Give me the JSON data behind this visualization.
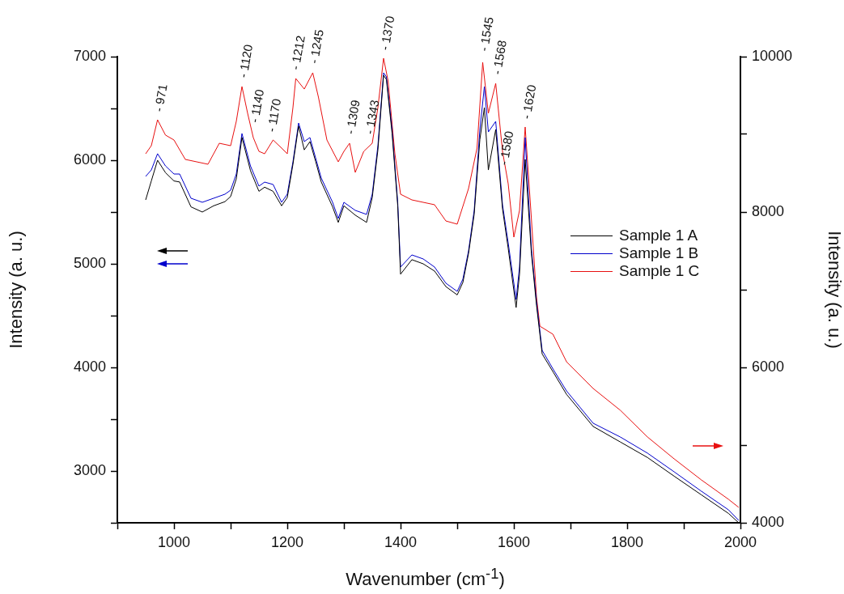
{
  "chart_data": {
    "type": "line",
    "xlabel": "Wavenumber (cm$^{-1}$)",
    "ylabel": "Intensity (a. u.)",
    "y2label": "Intensity (a. u.)",
    "xlim": [
      900,
      2000
    ],
    "xticks": [
      {
        "value": 900,
        "label": null
      },
      1000,
      {
        "value": 1100,
        "label": null
      },
      1200,
      {
        "value": 1300,
        "label": null
      },
      1400,
      {
        "value": 1500,
        "label": null
      },
      1600,
      {
        "value": 1700,
        "label": null
      },
      1800,
      {
        "value": 1900,
        "label": null
      },
      2000
    ],
    "ylim": [
      2500,
      7000
    ],
    "yticks": [
      {
        "value": 2500,
        "label": null
      },
      3000,
      {
        "value": 3500,
        "label": null
      },
      4000,
      {
        "value": 4500,
        "label": null
      },
      5000,
      {
        "value": 5500,
        "label": null
      },
      6000,
      {
        "value": 6500,
        "label": null
      },
      7000
    ],
    "y2lim": [
      4000,
      10000
    ],
    "y2ticks": [
      4000,
      {
        "value": 5000,
        "label": null
      },
      6000,
      {
        "value": 7000,
        "label": null
      },
      8000,
      {
        "value": 9000,
        "label": null
      },
      10000
    ],
    "legend": "right",
    "marker": "none",
    "line_style": "solid",
    "series": [
      {
        "name": "Sample 1 A",
        "color": "#000000",
        "x": [
          950,
          960,
          971,
          985,
          1000,
          1010,
          1030,
          1050,
          1070,
          1090,
          1100,
          1110,
          1120,
          1135,
          1150,
          1160,
          1175,
          1190,
          1200,
          1210,
          1220,
          1230,
          1240,
          1250,
          1260,
          1280,
          1290,
          1300,
          1320,
          1340,
          1350,
          1360,
          1370,
          1375,
          1385,
          1395,
          1400,
          1420,
          1440,
          1460,
          1480,
          1500,
          1510,
          1520,
          1530,
          1540,
          1548,
          1555,
          1568,
          1580,
          1590,
          1604,
          1610,
          1620,
          1631,
          1640,
          1650,
          1670,
          1693,
          1740,
          1788,
          1836,
          1883,
          1931,
          1979,
          1997
        ],
        "values": [
          5617,
          5800,
          6000,
          5880,
          5800,
          5790,
          5550,
          5500,
          5560,
          5600,
          5650,
          5820,
          6220,
          5900,
          5700,
          5740,
          5700,
          5560,
          5640,
          5960,
          6330,
          6100,
          6180,
          5990,
          5790,
          5550,
          5400,
          5560,
          5470,
          5400,
          5640,
          6100,
          6820,
          6780,
          6260,
          5560,
          4900,
          5040,
          5000,
          4930,
          4780,
          4700,
          4820,
          5100,
          5480,
          6200,
          6508,
          5906,
          6297,
          5530,
          5150,
          4578,
          4900,
          6008,
          5100,
          4600,
          4130,
          3950,
          3740,
          3430,
          3280,
          3130,
          2950,
          2770,
          2590,
          2500
        ]
      },
      {
        "name": "Sample 1 B",
        "color": "#0000cc",
        "x": [
          950,
          960,
          971,
          985,
          1000,
          1010,
          1030,
          1050,
          1070,
          1090,
          1100,
          1110,
          1120,
          1135,
          1150,
          1160,
          1175,
          1190,
          1200,
          1210,
          1220,
          1230,
          1240,
          1250,
          1260,
          1280,
          1290,
          1300,
          1320,
          1340,
          1350,
          1360,
          1370,
          1375,
          1385,
          1395,
          1400,
          1420,
          1440,
          1460,
          1480,
          1500,
          1510,
          1520,
          1530,
          1540,
          1548,
          1555,
          1568,
          1580,
          1590,
          1604,
          1610,
          1620,
          1631,
          1640,
          1650,
          1670,
          1693,
          1740,
          1788,
          1836,
          1883,
          1931,
          1979,
          1997
        ],
        "values": [
          5844,
          5906,
          6063,
          5945,
          5867,
          5867,
          5633,
          5594,
          5633,
          5672,
          5711,
          5867,
          6258,
          5945,
          5750,
          5789,
          5766,
          5594,
          5672,
          5984,
          6359,
          6180,
          6219,
          6023,
          5828,
          5594,
          5438,
          5594,
          5516,
          5477,
          5672,
          6141,
          6844,
          6805,
          6297,
          5594,
          4969,
          5086,
          5047,
          4969,
          4813,
          4734,
          4852,
          5125,
          5516,
          6297,
          6711,
          6273,
          6375,
          5570,
          5203,
          4656,
          4969,
          6219,
          5148,
          4633,
          4164,
          3977,
          3773,
          3461,
          3328,
          3172,
          2992,
          2805,
          2625,
          2523
        ]
      },
      {
        "name": "Sample 1 C",
        "color": "#e81010",
        "axis": "y2",
        "x": [
          950,
          960,
          971,
          985,
          1000,
          1020,
          1040,
          1060,
          1080,
          1100,
          1110,
          1120,
          1130,
          1140,
          1150,
          1160,
          1175,
          1190,
          1200,
          1210,
          1215,
          1230,
          1245,
          1255,
          1270,
          1290,
          1300,
          1310,
          1320,
          1335,
          1350,
          1360,
          1370,
          1378,
          1390,
          1400,
          1420,
          1440,
          1460,
          1480,
          1500,
          1520,
          1535,
          1545,
          1555,
          1568,
          1580,
          1590,
          1600,
          1610,
          1620,
          1630,
          1640,
          1646,
          1669,
          1693,
          1740,
          1788,
          1836,
          1883,
          1931,
          1979,
          1997
        ],
        "values": [
          8750,
          8854,
          9187,
          8990,
          8927,
          8677,
          8646,
          8615,
          8885,
          8854,
          9167,
          9615,
          9271,
          8958,
          8781,
          8750,
          8927,
          8823,
          8750,
          9344,
          9719,
          9583,
          9792,
          9479,
          8927,
          8646,
          8781,
          8885,
          8510,
          8781,
          8885,
          9344,
          9979,
          9688,
          8750,
          8229,
          8156,
          8125,
          8094,
          7885,
          7844,
          8302,
          8823,
          9927,
          9271,
          9656,
          8781,
          8365,
          7677,
          8021,
          9094,
          8021,
          6906,
          6531,
          6427,
          6073,
          5729,
          5448,
          5104,
          4823,
          4552,
          4302,
          4198
        ]
      }
    ],
    "annotations": [
      {
        "text": "- 971",
        "x": 971,
        "y": 6406
      },
      {
        "text": "- 1120",
        "x": 1120,
        "y": 6734
      },
      {
        "text": "- 1140",
        "x": 1140,
        "y": 6300
      },
      {
        "text": "- 1170",
        "x": 1170,
        "y": 6210
      },
      {
        "text": "- 1212",
        "x": 1212,
        "y": 6810
      },
      {
        "text": "- 1245",
        "x": 1245,
        "y": 6870
      },
      {
        "text": "- 1309",
        "x": 1309,
        "y": 6190
      },
      {
        "text": "- 1343",
        "x": 1343,
        "y": 6190
      },
      {
        "text": "- 1370",
        "x": 1370,
        "y": 7000
      },
      {
        "text": "- 1545",
        "x": 1545,
        "y": 6990
      },
      {
        "text": "- 1568",
        "x": 1568,
        "y": 6766
      },
      {
        "text": "- 1580",
        "x": 1580,
        "y": 5890
      },
      {
        "text": "- 1620",
        "x": 1620,
        "y": 6336
      }
    ]
  }
}
